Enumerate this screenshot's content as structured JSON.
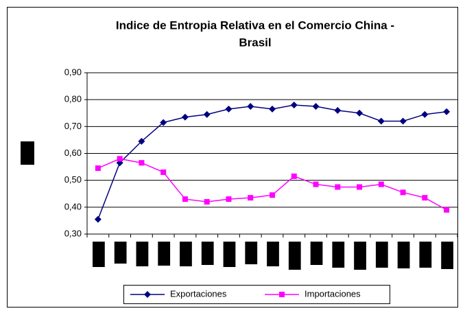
{
  "chart_data": {
    "type": "line",
    "title": [
      "Indice de Entropia Relativa en el Comercio China -",
      "Brasil"
    ],
    "categories": [
      null,
      null,
      null,
      null,
      null,
      null,
      null,
      null,
      null,
      null,
      null,
      null,
      null,
      null,
      null,
      null,
      null
    ],
    "series": [
      {
        "name": "Exportaciones",
        "color": "#000080",
        "marker": "diamond",
        "values": [
          0.355,
          0.565,
          0.645,
          0.715,
          0.735,
          0.745,
          0.765,
          0.775,
          0.765,
          0.78,
          0.775,
          0.76,
          0.75,
          0.72,
          0.72,
          0.745,
          0.755
        ]
      },
      {
        "name": "Importaciones",
        "color": "#ff00ff",
        "marker": "square",
        "values": [
          0.545,
          0.58,
          0.565,
          0.53,
          0.43,
          0.42,
          0.43,
          0.435,
          0.445,
          0.515,
          0.485,
          0.475,
          0.475,
          0.485,
          0.455,
          0.435,
          0.39
        ]
      }
    ],
    "ylim": [
      0.3,
      0.9
    ],
    "yticks": [
      {
        "value": 0.3,
        "label": "0,30"
      },
      {
        "value": 0.4,
        "label": "0,40"
      },
      {
        "value": 0.5,
        "label": "0,50"
      },
      {
        "value": 0.6,
        "label": "0,60"
      },
      {
        "value": 0.7,
        "label": "0,70"
      },
      {
        "value": 0.8,
        "label": "0,80"
      },
      {
        "value": 0.9,
        "label": "0,90"
      }
    ],
    "grid": true,
    "legend": "bottom"
  }
}
